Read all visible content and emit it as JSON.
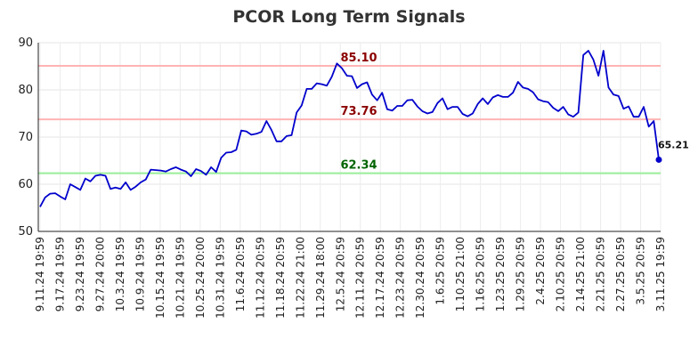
{
  "chart_data": {
    "type": "line",
    "title": "PCOR Long Term Signals",
    "xlabel": "",
    "ylabel": "",
    "ylim": [
      50,
      90
    ],
    "yticks": [
      50,
      60,
      70,
      80,
      90
    ],
    "grid": true,
    "colors": {
      "line": "#0000cc",
      "upper": "#ffb3b3",
      "lower": "#99ee99",
      "upper_text": "#8b0000",
      "lower_text": "#006400"
    },
    "xtick_labels": [
      "9.11.24 19:59",
      "9.17.24 19:59",
      "9.23.24 19:59",
      "9.27.24 20:00",
      "10.3.24 19:59",
      "10.9.24 19:59",
      "10.15.24 19:59",
      "10.21.24 19:59",
      "10.25.24 20:00",
      "10.31.24 19:59",
      "11.6.24 20:59",
      "11.12.24 20:59",
      "11.18.24 20:59",
      "11.22.24 21:00",
      "11.29.24 18:00",
      "12.5.24 20:59",
      "12.11.24 20:59",
      "12.17.24 20:59",
      "12.23.24 20:59",
      "12.30.24 20:59",
      "1.6.25 20:59",
      "1.10.25 21:00",
      "1.16.25 20:59",
      "1.23.25 20:59",
      "1.29.25 20:59",
      "2.4.25 20:59",
      "2.10.25 20:59",
      "2.14.25 21:00",
      "2.21.25 20:59",
      "2.27.25 20:59",
      "3.5.25 20:59",
      "3.11.25 19:59"
    ],
    "hlines": [
      {
        "label": "85.10",
        "value": 85.1,
        "color": "#ffb3b3",
        "text_color": "#8b0000"
      },
      {
        "label": "73.76",
        "value": 73.76,
        "color": "#ffb3b3",
        "text_color": "#8b0000"
      },
      {
        "label": "62.34",
        "value": 62.34,
        "color": "#99ee99",
        "text_color": "#006400"
      }
    ],
    "last_value_label": "65.21",
    "series": [
      {
        "values": [
          55.2,
          57.2,
          58.0,
          58.1,
          57.4,
          56.8,
          60.0,
          59.4,
          58.8,
          61.2,
          60.6,
          61.8,
          62.0,
          61.8,
          59.0,
          59.3,
          59.0,
          60.4,
          58.8,
          59.5,
          60.4,
          61.0,
          63.1,
          63.0,
          62.9,
          62.7,
          63.2,
          63.6,
          63.1,
          62.7,
          61.7,
          63.2,
          62.8,
          62.0,
          63.6,
          62.6,
          65.6,
          66.7,
          66.8,
          67.3,
          71.4,
          71.2,
          70.5,
          70.7,
          71.1,
          73.4,
          71.5,
          69.1,
          69.1,
          70.2,
          70.4,
          75.2,
          76.7,
          80.2,
          80.2,
          81.4,
          81.2,
          80.9,
          82.8,
          85.6,
          84.6,
          83.0,
          82.9,
          80.4,
          81.2,
          81.6,
          79.0,
          77.8,
          79.4,
          75.9,
          75.6,
          76.6,
          76.6,
          77.8,
          77.9,
          76.5,
          75.5,
          75.0,
          75.3,
          77.2,
          78.2,
          75.9,
          76.4,
          76.4,
          74.9,
          74.4,
          75.0,
          77.0,
          78.2,
          77.0,
          78.4,
          78.9,
          78.5,
          78.5,
          79.4,
          81.7,
          80.5,
          80.2,
          79.5,
          78.0,
          77.6,
          77.4,
          76.2,
          75.5,
          76.4,
          74.8,
          74.3,
          75.2,
          87.4,
          88.3,
          86.4,
          83.0,
          88.3,
          80.5,
          79.0,
          78.7,
          76.0,
          76.5,
          74.3,
          74.3,
          76.4,
          72.2,
          73.4,
          65.2
        ]
      }
    ]
  }
}
